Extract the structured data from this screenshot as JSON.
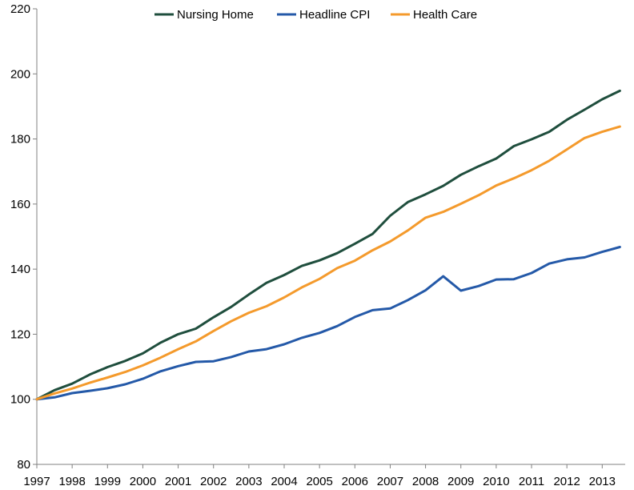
{
  "chart_data": {
    "type": "line",
    "title": "",
    "xlabel": "",
    "ylabel": "",
    "ylim": [
      80,
      220
    ],
    "yticks": [
      80,
      100,
      120,
      140,
      160,
      180,
      200,
      220
    ],
    "x_tick_labels": [
      "1997",
      "1998",
      "1999",
      "2000",
      "2001",
      "2002",
      "2003",
      "2004",
      "2005",
      "2006",
      "2007",
      "2008",
      "2009",
      "2010",
      "2011",
      "2012",
      "2013"
    ],
    "legend_position": "top-center",
    "grid": false,
    "x": [
      1997.0,
      1997.5,
      1998.0,
      1998.5,
      1999.0,
      1999.5,
      2000.0,
      2000.5,
      2001.0,
      2001.5,
      2002.0,
      2002.5,
      2003.0,
      2003.5,
      2004.0,
      2004.5,
      2005.0,
      2005.5,
      2006.0,
      2006.5,
      2007.0,
      2007.5,
      2008.0,
      2008.5,
      2009.0,
      2009.5,
      2010.0,
      2010.5,
      2011.0,
      2011.5,
      2012.0,
      2012.5,
      2013.0,
      2013.5
    ],
    "series": [
      {
        "name": "Nursing Home",
        "color": "#1f4e3d",
        "values": [
          100.0,
          102.8,
          104.8,
          107.6,
          109.9,
          111.8,
          114.1,
          117.4,
          120.0,
          121.7,
          125.2,
          128.4,
          132.2,
          135.8,
          138.2,
          141.0,
          142.7,
          144.9,
          147.8,
          150.8,
          156.4,
          160.6,
          163.0,
          165.6,
          169.0,
          171.6,
          174.0,
          177.8,
          179.9,
          182.2,
          185.9,
          189.0,
          192.2,
          194.8
        ]
      },
      {
        "name": "Headline CPI",
        "color": "#2459a8",
        "values": [
          100.0,
          100.6,
          101.9,
          102.6,
          103.4,
          104.6,
          106.3,
          108.6,
          110.2,
          111.5,
          111.7,
          113.0,
          114.7,
          115.4,
          116.9,
          118.9,
          120.4,
          122.5,
          125.3,
          127.4,
          127.9,
          130.5,
          133.5,
          137.8,
          133.4,
          134.8,
          136.8,
          136.9,
          138.8,
          141.7,
          143.0,
          143.6,
          145.3,
          146.8
        ]
      },
      {
        "name": "Health Care",
        "color": "#f49a2c",
        "values": [
          100.0,
          101.8,
          103.3,
          105.1,
          106.7,
          108.4,
          110.4,
          112.8,
          115.4,
          117.8,
          121.0,
          124.0,
          126.6,
          128.6,
          131.3,
          134.4,
          137.0,
          140.3,
          142.6,
          145.8,
          148.5,
          151.9,
          155.8,
          157.6,
          160.1,
          162.7,
          165.7,
          167.9,
          170.4,
          173.3,
          176.8,
          180.3,
          182.2,
          183.8
        ]
      }
    ]
  }
}
